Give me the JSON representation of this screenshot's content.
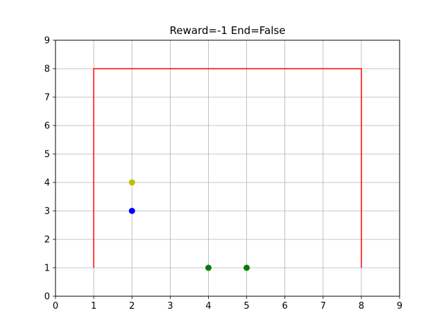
{
  "chart_data": {
    "type": "scatter",
    "title": "Reward=-1 End=False",
    "xlabel": "",
    "ylabel": "",
    "xlim": [
      0,
      9
    ],
    "ylim": [
      0,
      9
    ],
    "xticks": [
      0,
      1,
      2,
      3,
      4,
      5,
      6,
      7,
      8,
      9
    ],
    "yticks": [
      0,
      1,
      2,
      3,
      4,
      5,
      6,
      7,
      8,
      9
    ],
    "grid": true,
    "lines": [
      {
        "color": "#ff0000",
        "points": [
          [
            1,
            1
          ],
          [
            1,
            8
          ],
          [
            8,
            8
          ],
          [
            8,
            1
          ]
        ]
      }
    ],
    "points": [
      {
        "x": 2,
        "y": 4,
        "color": "#bfbf00"
      },
      {
        "x": 2,
        "y": 3,
        "color": "#0000ff"
      },
      {
        "x": 4,
        "y": 1,
        "color": "#008000"
      },
      {
        "x": 5,
        "y": 1,
        "color": "#008000"
      }
    ]
  }
}
